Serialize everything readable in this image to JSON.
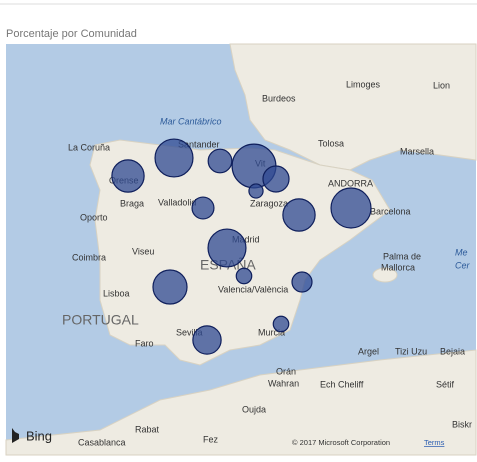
{
  "title": "Porcentaje por Comunidad",
  "map": {
    "type": "bubble-map",
    "values": [
      26,
      36,
      14,
      48,
      17,
      5,
      26,
      40,
      12,
      36,
      29,
      6,
      10,
      6,
      20
    ],
    "color": "#2f4a92",
    "places": [
      "Burdeos",
      "Limoges",
      "Lion",
      "Mar Cantábrico",
      "La Coruña",
      "Santander",
      "Tolosa",
      "Marsella",
      "Orense",
      "Vit",
      "ANDORRA",
      "Valladolid",
      "Zaragoza",
      "Barcelona",
      "Oporto",
      "Braga",
      "Viseu",
      "Madrid",
      "Coimbra",
      "ESPAÑA",
      "Palma de",
      "Mallorca",
      "Lisboa",
      "PORTUGAL",
      "Valencia/València",
      "Sevilla",
      "Faro",
      "Murcia",
      "Argel",
      "Tizi Uzu",
      "Bejaia",
      "Orán",
      "Wahran",
      "Ech Cheliff",
      "Sétif",
      "Oujda",
      "Rabat",
      "Casablanca",
      "Fez",
      "Biskr",
      "Me",
      "Cer"
    ],
    "brand": "Bing",
    "copyright": "© 2017 Microsoft Corporation",
    "terms": "Terms"
  }
}
